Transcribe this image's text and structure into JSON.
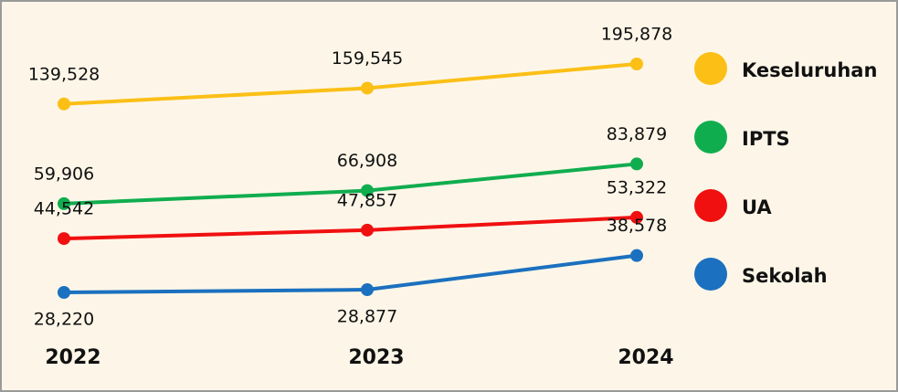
{
  "chart_data": {
    "type": "line",
    "log_scale": true,
    "categories": [
      "2022",
      "2023",
      "2024"
    ],
    "series": [
      {
        "name": "Keseluruhan",
        "color": "#fbbf16",
        "values": [
          139528,
          159545,
          195878
        ],
        "value_labels": [
          "139,528",
          "159,545",
          "195,878"
        ]
      },
      {
        "name": "IPTS",
        "color": "#10ad4f",
        "values": [
          59906,
          66908,
          83879
        ],
        "value_labels": [
          "59,906",
          "66,908",
          "83,879"
        ]
      },
      {
        "name": "UA",
        "color": "#f01010",
        "values": [
          44542,
          47857,
          53322
        ],
        "value_labels": [
          "44,542",
          "47,857",
          "53,322"
        ]
      },
      {
        "name": "Sekolah",
        "color": "#1b70bf",
        "values": [
          28220,
          28877,
          38578
        ],
        "value_labels": [
          "28,220",
          "28,877",
          "38,578"
        ]
      }
    ]
  }
}
